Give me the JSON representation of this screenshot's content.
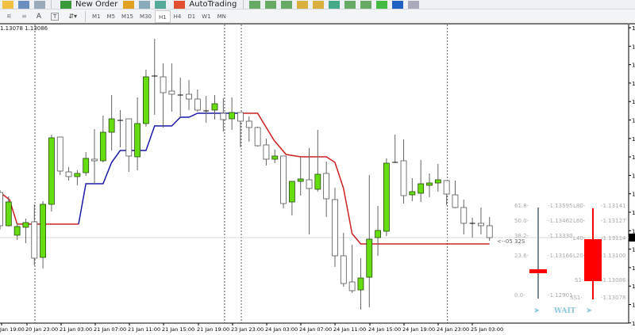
{
  "toolbar_top": {
    "new_order": "New Order",
    "auto_trading": "AutoTrading"
  },
  "toolbar_periods": [
    {
      "label": "M1"
    },
    {
      "label": "M5"
    },
    {
      "label": "M15"
    },
    {
      "label": "M30"
    },
    {
      "label": "H1",
      "active": true
    },
    {
      "label": "H4"
    },
    {
      "label": "D1"
    },
    {
      "label": "W1"
    },
    {
      "label": "MN"
    }
  ],
  "quote_text": "1.13078 1.13086",
  "colors": {
    "bull": "#66dd11",
    "bear": "#ffffff",
    "trend_up": "#1a1aa8",
    "trend_down": "#cc2222",
    "indicator_red": "#ff0000",
    "indicator_gray": "#7a8a96",
    "wait": "#8fc7dc"
  },
  "time_labels": [
    "Jan 19:00",
    "20 Jan 23:00",
    "21 Jan 03:00",
    "21 Jan 07:00",
    "21 Jan 11:00",
    "21 Jan 15:00",
    "21 Jan 19:00",
    "23 Jan 23:00",
    "24 Jan 03:00",
    "24 Jan 07:00",
    "24 Jan 11:00",
    "24 Jan 15:00",
    "24 Jan 19:00",
    "24 Jan 23:00",
    "25 Jan 03:00"
  ],
  "price_axis_label": "1.",
  "indicator": {
    "fib_levels": [
      "61.8-",
      "50.0-",
      "38.2-",
      "23.6-",
      "0.0-"
    ],
    "fib_prices": [
      "-1.13595",
      "-1.13462",
      "-1.13330",
      "-1.13166",
      "-1.12901"
    ],
    "level_names": [
      "L80-",
      "L60-",
      "L40-",
      "L20-",
      "S1-",
      "SS1-"
    ],
    "level_prices": [
      "-1.13141",
      "-1.13127",
      "-1.13114",
      "-1.13100",
      "-1.13086",
      "-1.13078"
    ],
    "arrow_label": "<--05 32S",
    "signal": "WAIT"
  },
  "chart_data": {
    "type": "candlestick",
    "timeframe": "H1",
    "bid_price": 1.1312,
    "candles": [
      [
        1.13348,
        1.1336,
        1.1316,
        1.1318
      ],
      [
        1.1318,
        1.13328,
        1.13176,
        1.133
      ],
      [
        1.13132,
        1.13192,
        1.13108,
        1.13176
      ],
      [
        1.13172,
        1.13216,
        1.13092,
        1.13196
      ],
      [
        1.132,
        1.13288,
        1.1298,
        1.13016
      ],
      [
        1.1302,
        1.13304,
        1.12964,
        1.13288
      ],
      [
        1.13288,
        1.1364,
        1.13252,
        1.13624
      ],
      [
        1.13628,
        1.13628,
        1.13436,
        1.13456
      ],
      [
        1.13452,
        1.13476,
        1.13408,
        1.13428
      ],
      [
        1.13428,
        1.1346,
        1.13384,
        1.13444
      ],
      [
        1.13448,
        1.13552,
        1.13432,
        1.1352
      ],
      [
        1.13516,
        1.13668,
        1.13392,
        1.13508
      ],
      [
        1.13508,
        1.13736,
        1.135,
        1.13652
      ],
      [
        1.13652,
        1.1384,
        1.1356,
        1.1372
      ],
      [
        1.13712,
        1.13764,
        1.13576,
        1.13712
      ],
      [
        1.1372,
        1.1372,
        1.13452,
        1.13532
      ],
      [
        1.13528,
        1.13828,
        1.1346,
        1.13696
      ],
      [
        1.13696,
        1.13968,
        1.1368,
        1.13932
      ],
      [
        1.13936,
        1.14124,
        1.1374,
        1.13932
      ],
      [
        1.13932,
        1.14,
        1.13676,
        1.13852
      ],
      [
        1.1386,
        1.14,
        1.13756,
        1.13844
      ],
      [
        1.1384,
        1.13928,
        1.13728,
        1.1384
      ],
      [
        1.13844,
        1.13916,
        1.13764,
        1.1382
      ],
      [
        1.1382,
        1.13868,
        1.13756,
        1.13764
      ],
      [
        1.1376,
        1.13836,
        1.137,
        1.1376
      ],
      [
        1.13764,
        1.1384,
        1.13716,
        1.13796
      ],
      [
        1.13748,
        1.13824,
        1.13656,
        1.13716
      ],
      [
        1.1372,
        1.13828,
        1.13664,
        1.13752
      ],
      [
        1.13752,
        1.13752,
        1.13576,
        1.13708
      ],
      [
        1.13708,
        1.13732,
        1.13604,
        1.13676
      ],
      [
        1.13676,
        1.1368,
        1.1358,
        1.13584
      ],
      [
        1.13588,
        1.1362,
        1.13484,
        1.13516
      ],
      [
        1.13516,
        1.13564,
        1.13496,
        1.13532
      ],
      [
        1.13532,
        1.13532,
        1.13268,
        1.13292
      ],
      [
        1.133,
        1.13404,
        1.13232,
        1.13404
      ],
      [
        1.13404,
        1.13528,
        1.13332,
        1.13416
      ],
      [
        1.13412,
        1.13572,
        1.13136,
        1.13368
      ],
      [
        1.13364,
        1.13664,
        1.13352,
        1.1344
      ],
      [
        1.13444,
        1.13504,
        1.13224,
        1.13316
      ],
      [
        1.13312,
        1.13372,
        1.12972,
        1.13028
      ],
      [
        1.13028,
        1.13144,
        1.12872,
        1.12888
      ],
      [
        1.12896,
        1.13084,
        1.1284,
        1.12852
      ],
      [
        1.12856,
        1.13016,
        1.12756,
        1.12916
      ],
      [
        1.1292,
        1.13436,
        1.12768,
        1.13112
      ],
      [
        1.1312,
        1.1328,
        1.13028,
        1.13156
      ],
      [
        1.13152,
        1.1352,
        1.13128,
        1.13496
      ],
      [
        1.135,
        1.1364,
        1.135,
        1.135
      ],
      [
        1.13508,
        1.13616,
        1.13292,
        1.13332
      ],
      [
        1.13336,
        1.1342,
        1.13304,
        1.13352
      ],
      [
        1.13344,
        1.13512,
        1.133,
        1.13392
      ],
      [
        1.13384,
        1.13444,
        1.13324,
        1.13396
      ],
      [
        1.13396,
        1.13492,
        1.13352,
        1.13412
      ],
      [
        1.13408,
        1.13408,
        1.13284,
        1.1334
      ],
      [
        1.13336,
        1.13408,
        1.13268,
        1.13272
      ],
      [
        1.13272,
        1.13312,
        1.13136,
        1.13192
      ],
      [
        1.13192,
        1.1322,
        1.1312,
        1.13192
      ],
      [
        1.13192,
        1.13272,
        1.13136,
        1.1318
      ],
      [
        1.1318,
        1.13224,
        1.13104,
        1.1312
      ]
    ],
    "candle_fields": [
      "open",
      "high",
      "low",
      "close"
    ],
    "trend_line": {
      "down_1": [
        [
          0,
          1.13348
        ],
        [
          1.1,
          1.13312
        ],
        [
          2,
          1.13188
        ],
        [
          9.15,
          1.13188
        ]
      ],
      "up": [
        [
          9.15,
          1.13188
        ],
        [
          10,
          1.13392
        ],
        [
          12,
          1.13392
        ],
        [
          13,
          1.135
        ],
        [
          14,
          1.1356
        ],
        [
          17,
          1.1356
        ],
        [
          18,
          1.13684
        ],
        [
          20,
          1.13684
        ],
        [
          21,
          1.13728
        ],
        [
          22,
          1.13728
        ],
        [
          23,
          1.13748
        ],
        [
          28.2,
          1.13748
        ]
      ],
      "down_2": [
        [
          28.2,
          1.13748
        ],
        [
          30,
          1.13748
        ],
        [
          31.9,
          1.13612
        ],
        [
          33.3,
          1.1354
        ],
        [
          35,
          1.13528
        ],
        [
          38,
          1.13528
        ],
        [
          39,
          1.135
        ],
        [
          40,
          1.13368
        ],
        [
          41,
          1.1314
        ],
        [
          42,
          1.13088
        ],
        [
          57,
          1.13088
        ]
      ]
    },
    "period_separators_at_candle": [
      4.07,
      26.15,
      28.1,
      52.1
    ]
  }
}
